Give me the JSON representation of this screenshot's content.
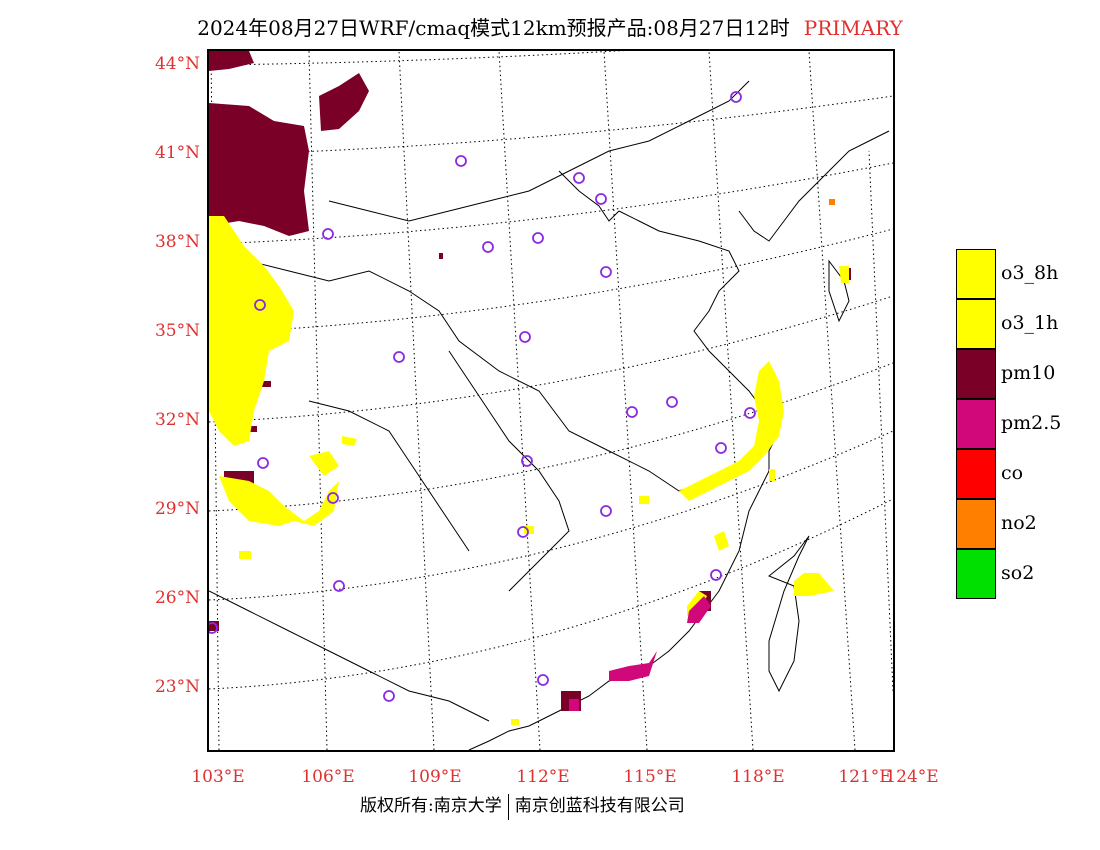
{
  "title": {
    "main": "2024年08月27日WRF/cmaq模式12km预报产品:08月27日12时",
    "tag": "PRIMARY"
  },
  "axes": {
    "lat_labels": [
      "44°N",
      "41°N",
      "38°N",
      "35°N",
      "32°N",
      "29°N",
      "26°N",
      "23°N"
    ],
    "lon_labels": [
      "103°E",
      "106°E",
      "109°E",
      "112°E",
      "115°E",
      "118°E",
      "121°E",
      "124°E"
    ]
  },
  "legend": [
    {
      "label": "o3_8h",
      "color": "#ffff00"
    },
    {
      "label": "o3_1h",
      "color": "#ffff00"
    },
    {
      "label": "pm10",
      "color": "#7a0028"
    },
    {
      "label": "pm2.5",
      "color": "#d0087a"
    },
    {
      "label": "co",
      "color": "#ff0000"
    },
    {
      "label": "no2",
      "color": "#ff8000"
    },
    {
      "label": "so2",
      "color": "#00e000"
    }
  ],
  "footer": {
    "left": "版权所有:南京大学",
    "right": "南京创蓝科技有限公司"
  },
  "colors": {
    "axis_label": "#e03030",
    "station_marker": "#8a2be2"
  },
  "stations_count": 29
}
